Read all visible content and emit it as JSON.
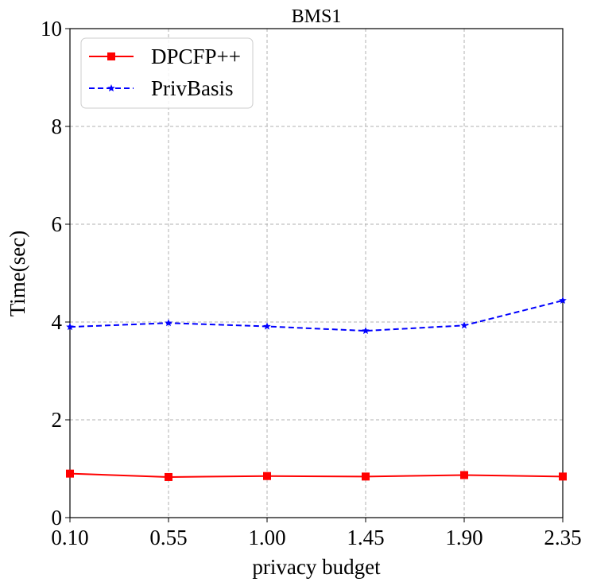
{
  "chart_data": {
    "type": "line",
    "title": "BMS1",
    "xlabel": "privacy budget",
    "ylabel": "Time(sec)",
    "x": [
      0.1,
      0.55,
      1.0,
      1.45,
      1.9,
      2.35
    ],
    "x_tick_labels": [
      "0.10",
      "0.55",
      "1.00",
      "1.45",
      "1.90",
      "2.35"
    ],
    "xlim": [
      0.1,
      2.35
    ],
    "ylim": [
      0,
      10
    ],
    "y_ticks": [
      0,
      2,
      4,
      6,
      8,
      10
    ],
    "y_tick_labels": [
      "0",
      "2",
      "4",
      "6",
      "8",
      "10"
    ],
    "grid": true,
    "legend_position": "top-left",
    "series": [
      {
        "name": "DPCFP++",
        "values": [
          0.9,
          0.83,
          0.85,
          0.84,
          0.87,
          0.84
        ],
        "color": "#ff0000",
        "line_style": "solid",
        "marker": "square"
      },
      {
        "name": "PrivBasis",
        "values": [
          3.9,
          3.98,
          3.91,
          3.82,
          3.93,
          4.44
        ],
        "color": "#0000ff",
        "line_style": "dashed",
        "marker": "star"
      }
    ]
  }
}
